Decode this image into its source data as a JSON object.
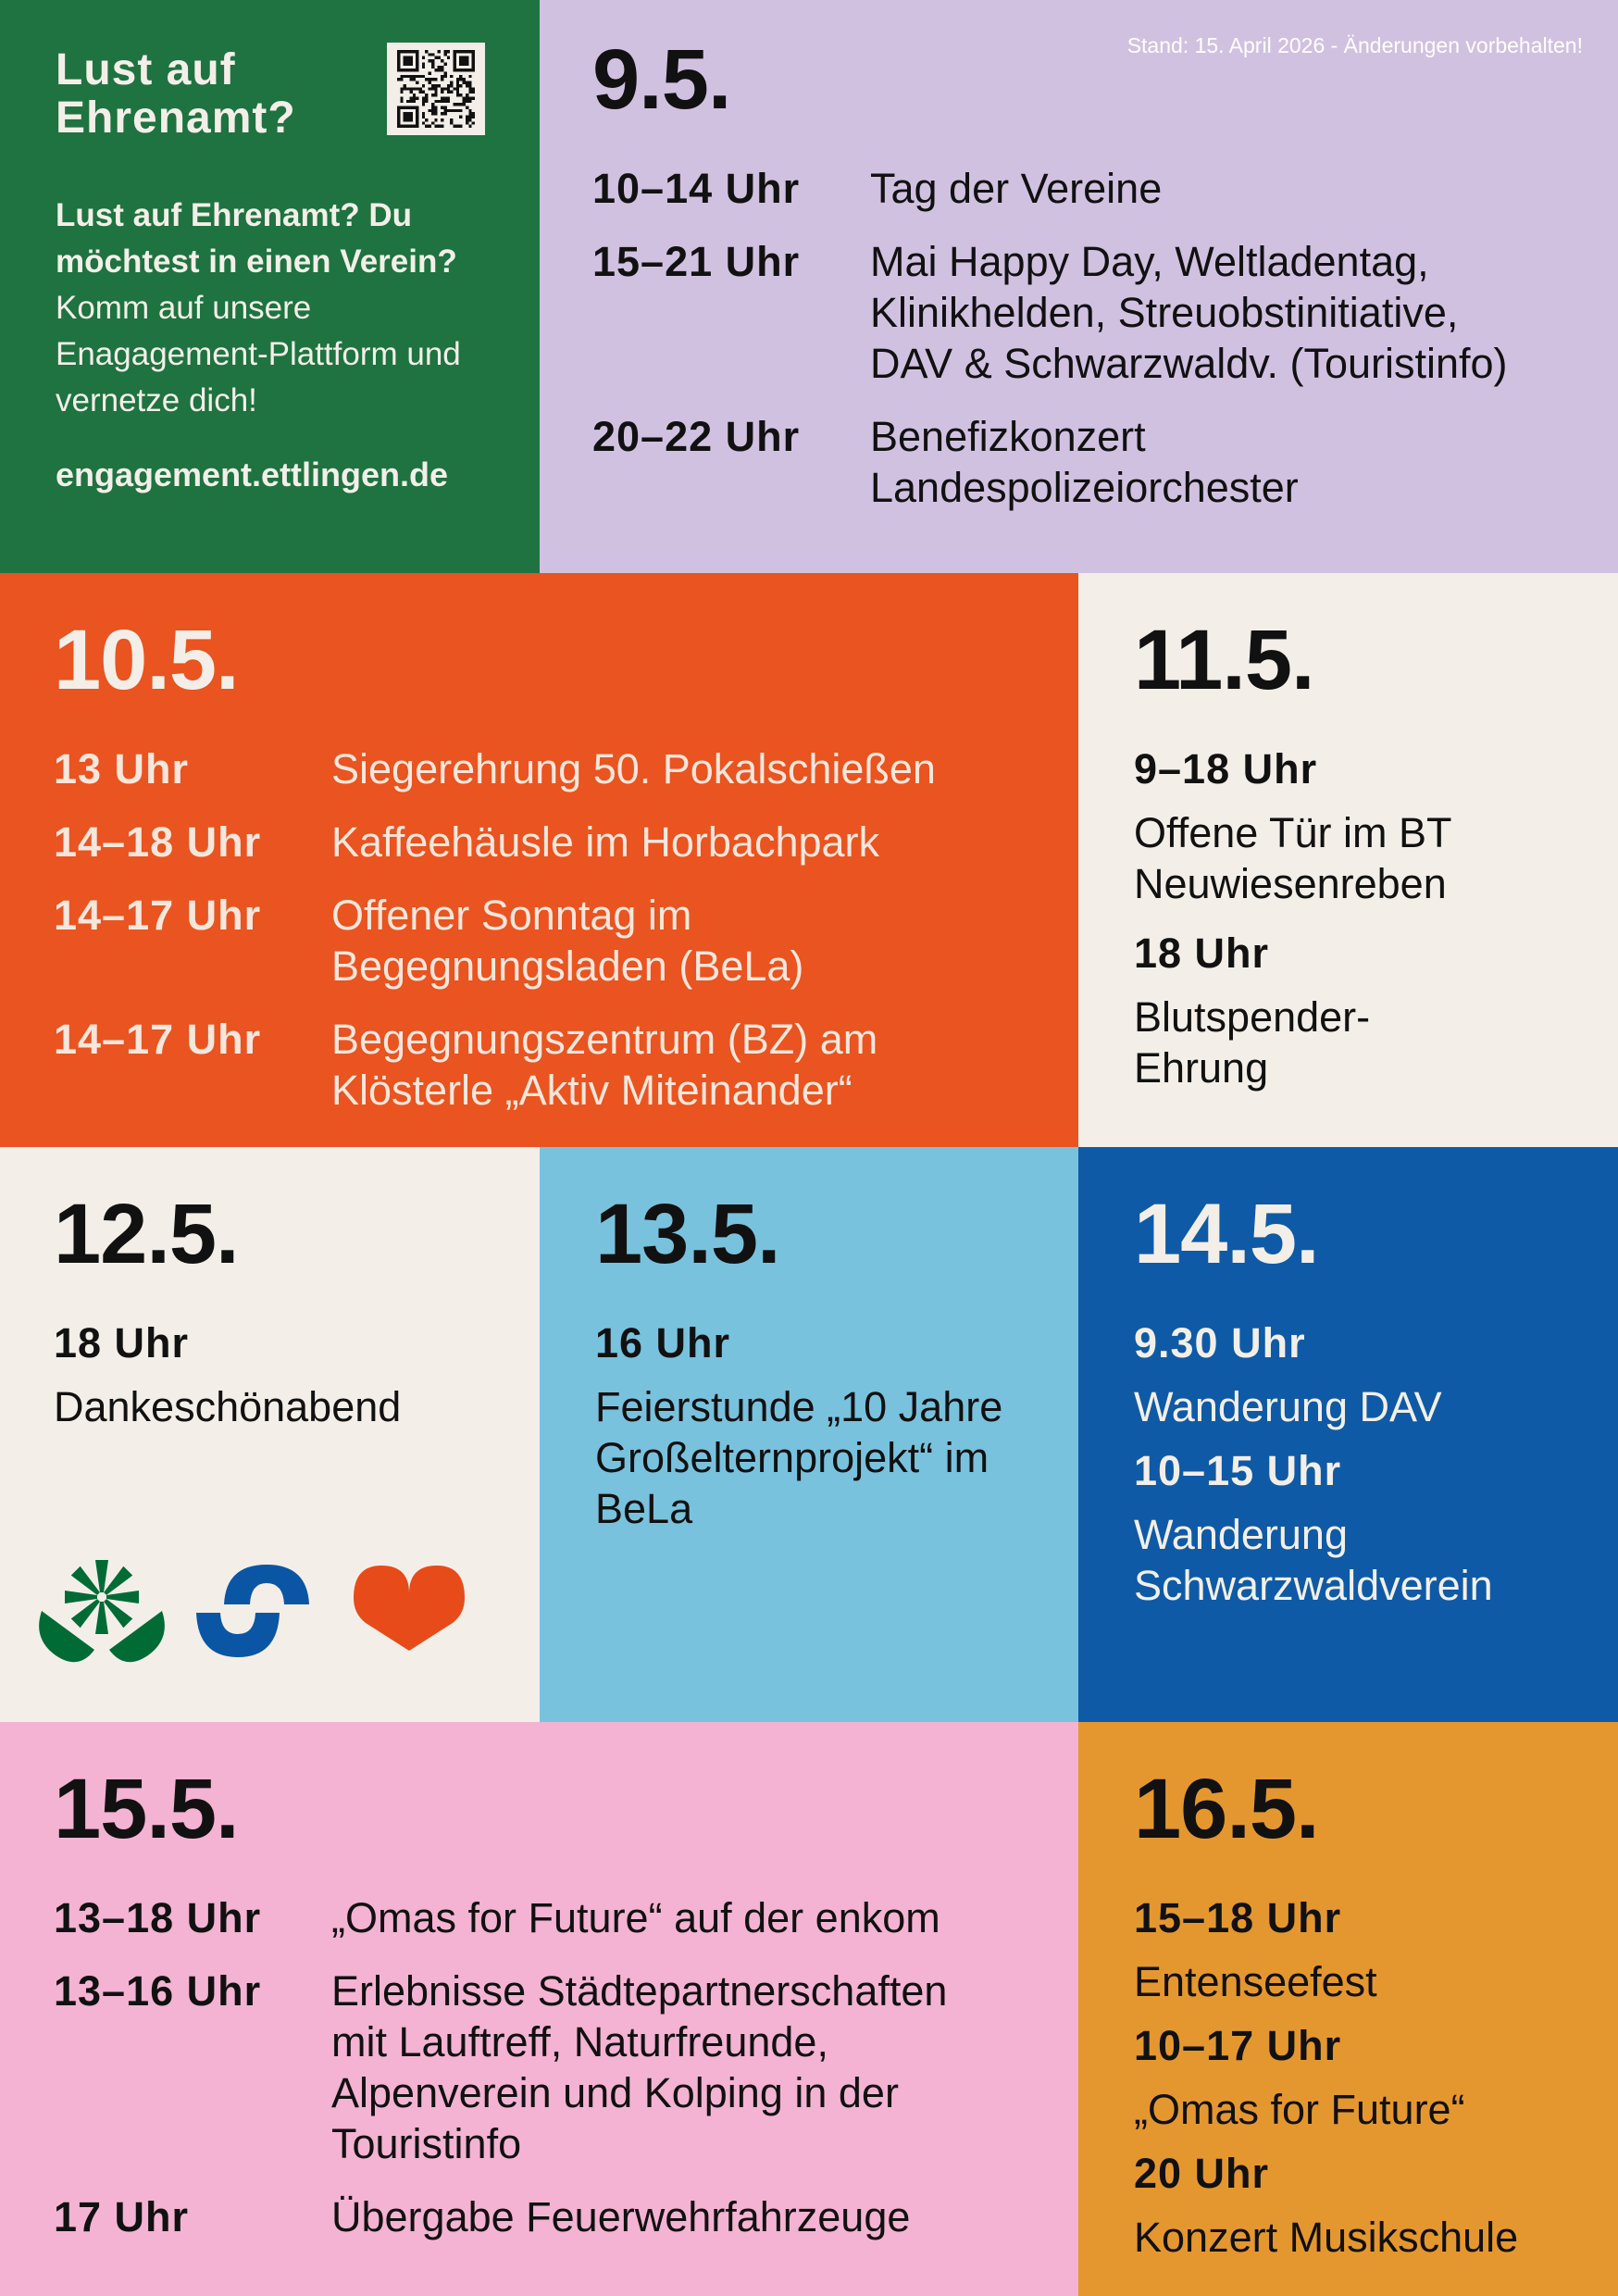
{
  "promo": {
    "title_line1": "Lust auf",
    "title_line2": "Ehrenamt?",
    "body_bold": "Lust auf Ehrenamt? Du möchtest in einen Verein?",
    "body_regular": " Komm auf unsere Enagagement-Plattform und vernetze dich!",
    "url": "engagement.ettlingen.de",
    "qr_icon": "qr-code"
  },
  "note": "Stand: 15. April 2026 - Änderungen vorbehalten!",
  "days": [
    {
      "date": "9.5.",
      "entries": [
        {
          "time": "10–14 Uhr",
          "desc": "Tag der Vereine"
        },
        {
          "time": "15–21 Uhr",
          "desc": "Mai Happy Day, Weltladentag, Klinikhelden, Streuobstinitiative, DAV & Schwarzwaldv. (Touristinfo)"
        },
        {
          "time": "20–22 Uhr",
          "desc": "Benefizkonzert Landespolizeiorchester"
        }
      ]
    },
    {
      "date": "10.5.",
      "entries": [
        {
          "time": "13 Uhr",
          "desc": "Siegerehrung 50. Pokalschießen"
        },
        {
          "time": "14–18 Uhr",
          "desc": "Kaffeehäusle im Horbachpark"
        },
        {
          "time": "14–17 Uhr",
          "desc": "Offener Sonntag im Begegnungsladen (BeLa)"
        },
        {
          "time": "14–17 Uhr",
          "desc": "Begegnungszentrum (BZ) am Klösterle „Aktiv Miteinander“"
        }
      ]
    },
    {
      "date": "11.5.",
      "entries": [
        {
          "time": "9–18 Uhr",
          "desc": "Offene Tür im BT Neuwiesenreben"
        },
        {
          "time": "18 Uhr",
          "desc": "Blutspender-Ehrung"
        }
      ]
    },
    {
      "date": "12.5.",
      "entries": [
        {
          "time": "18 Uhr",
          "desc": "Dankeschönabend"
        }
      ]
    },
    {
      "date": "13.5.",
      "entries": [
        {
          "time": "16 Uhr",
          "desc": "Feierstunde „10 Jahre Großelternprojekt“ im BeLa"
        }
      ]
    },
    {
      "date": "14.5.",
      "entries": [
        {
          "time": "9.30 Uhr",
          "desc": "Wanderung DAV"
        },
        {
          "time": "10–15 Uhr",
          "desc": "Wanderung Schwarzwaldverein"
        }
      ]
    },
    {
      "date": "15.5.",
      "entries": [
        {
          "time": "13–18 Uhr",
          "desc": "„Omas for Future“ auf der enkom"
        },
        {
          "time": "13–16 Uhr",
          "desc": "Erlebnisse Städtepartnerschaften mit Lauftreff, Naturfreunde, Alpenverein und Kolping in der Touristinfo"
        },
        {
          "time": "17 Uhr",
          "desc": "Übergabe Feuerwehrfahrzeuge"
        }
      ]
    },
    {
      "date": "16.5.",
      "entries": [
        {
          "time": "15–18 Uhr",
          "desc": "Entenseefest"
        },
        {
          "time": "10–17 Uhr",
          "desc": "„Omas for Future“"
        },
        {
          "time": "20 Uhr",
          "desc": "Konzert Musikschule"
        }
      ]
    }
  ],
  "colors": {
    "green": "#1e7340",
    "lilac": "#d1c1e1",
    "orange": "#e95420",
    "cream": "#f3efe8",
    "lightblue": "#79c2de",
    "blue": "#0f5aa6",
    "pink": "#f4b3d3",
    "amber": "#e5972f"
  },
  "logo_icons": [
    "flower-icon",
    "link-icon",
    "heart-icon"
  ]
}
